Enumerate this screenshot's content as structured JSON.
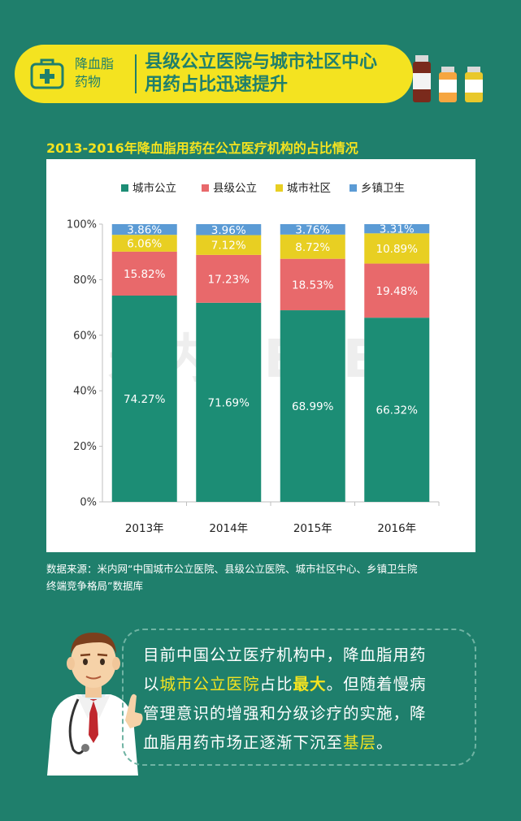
{
  "banner": {
    "category_line1": "降血脂",
    "category_line2": "药物",
    "title_line1": "县级公立医院与城市社区中心",
    "title_line2": "用药占比迅速提升"
  },
  "chart_title": "2013-2016年降血脂用药在公立医疗机构的占比情况",
  "chart_data": {
    "type": "bar",
    "stacked": true,
    "categories": [
      "2013年",
      "2014年",
      "2015年",
      "2016年"
    ],
    "series": [
      {
        "name": "城市公立",
        "values": [
          74.27,
          71.69,
          68.99,
          66.32
        ],
        "labels": [
          "74.27%",
          "71.69%",
          "68.99%",
          "66.32%"
        ]
      },
      {
        "name": "县级公立",
        "values": [
          15.82,
          17.23,
          18.53,
          19.48
        ],
        "labels": [
          "15.82%",
          "17.23%",
          "18.53%",
          "19.48%"
        ]
      },
      {
        "name": "城市社区",
        "values": [
          6.06,
          7.12,
          8.72,
          10.89
        ],
        "labels": [
          "6.06%",
          "7.12%",
          "8.72%",
          "10.89%"
        ]
      },
      {
        "name": "乡镇卫生",
        "values": [
          3.86,
          3.96,
          3.76,
          3.31
        ],
        "labels": [
          "3.86%",
          "3.96%",
          "3.76%",
          "3.31%"
        ]
      }
    ],
    "colors": [
      "#1c8d75",
      "#e8696b",
      "#e8cf22",
      "#5b9bd5"
    ],
    "yticks": [
      "0%",
      "20%",
      "40%",
      "60%",
      "80%",
      "100%"
    ],
    "ylim": [
      0,
      100
    ],
    "legend_position": "top",
    "watermark": "米内MENET"
  },
  "source": {
    "line1": "数据来源：米内网“中国城市公立医院、县级公立医院、城市社区中心、乡镇卫生院",
    "line2": "终端竞争格局”数据库"
  },
  "note": {
    "line1": "目前中国公立医疗机构中，降血脂用药",
    "line2_a": "以",
    "line2_hl": "城市公立医院",
    "line2_b": "占比",
    "line2_bold": "最大",
    "line2_c": "。但随着慢病",
    "line3": "管理意识的增强和分级诊疗的实施，降",
    "line4_a": "血脂用药市场正逐渐下沉至",
    "line4_hl": "基层",
    "line4_b": "。"
  },
  "colors": {
    "background": "#1f7f6c",
    "accent": "#f4e320"
  }
}
